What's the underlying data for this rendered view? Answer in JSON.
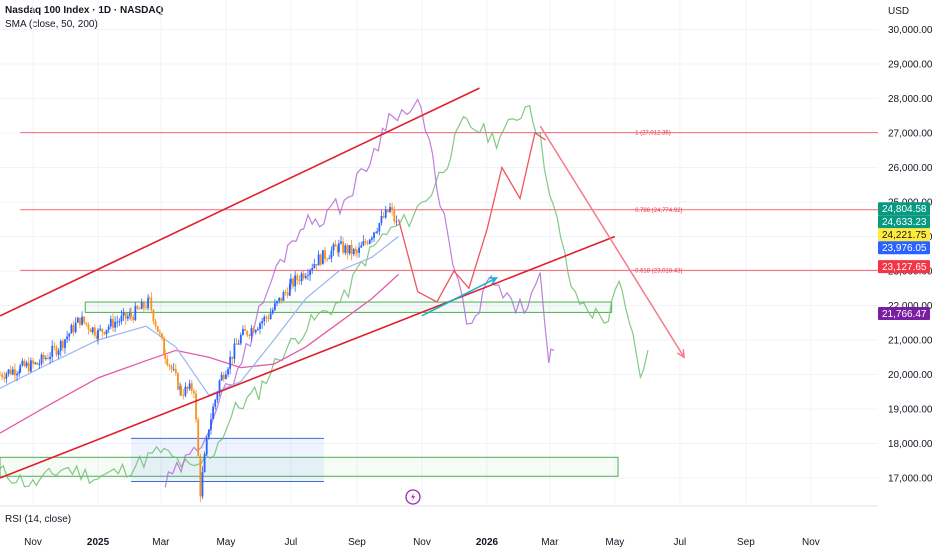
{
  "header": {
    "title": "Nasdaq 100 Index · 1D · NASDAQ",
    "indicator": "SMA (close, 50, 200)",
    "rsi": "RSI (14, close)",
    "currency": "USD"
  },
  "colors": {
    "up": "#2962ff",
    "down": "#f7931a",
    "sma50": "#9bb6ee",
    "sma200": "#e35ba5",
    "channel": "#e0202e",
    "fib": "#f23645",
    "zone": "#4caf50",
    "projection_purple": "#b36bd6",
    "projection_green": "#6fbf6f",
    "projection_red": "#f0545f",
    "arrow_cyan": "#12b5cf",
    "arrow_pink": "#f77a8a",
    "blue_box": "#3a6fd8"
  },
  "chart_data": {
    "type": "candlestick",
    "title": "Nasdaq 100 Index · 1D · NASDAQ",
    "indicators": [
      "SMA 50",
      "SMA 200",
      "RSI 14"
    ],
    "currency": "USD",
    "ylim": [
      16400,
      30600
    ],
    "y_ticks": [
      17000,
      18000,
      19000,
      20000,
      21000,
      22000,
      23000,
      24000,
      25000,
      26000,
      27000,
      28000,
      29000,
      30000
    ],
    "y_tick_labels": [
      "17,000.00",
      "18,000.00",
      "19,000.00",
      "20,000.00",
      "21,000.00",
      "22,000.00",
      "23,000.00",
      "24,000.00",
      "25,000.00",
      "26,000.00",
      "27,000.00",
      "28,000.00",
      "29,000.00",
      "30,000.00"
    ],
    "x_labels": [
      {
        "date": "2024-11",
        "text": "Nov",
        "bold": false
      },
      {
        "date": "2025-01",
        "text": "2025",
        "bold": true
      },
      {
        "date": "2025-03",
        "text": "Mar",
        "bold": false
      },
      {
        "date": "2025-05",
        "text": "May",
        "bold": false
      },
      {
        "date": "2025-07",
        "text": "Jul",
        "bold": false
      },
      {
        "date": "2025-09",
        "text": "Sep",
        "bold": false
      },
      {
        "date": "2025-11",
        "text": "Nov",
        "bold": false
      },
      {
        "date": "2026-01",
        "text": "2026",
        "bold": true
      },
      {
        "date": "2026-03",
        "text": "Mar",
        "bold": false
      },
      {
        "date": "2026-05",
        "text": "May",
        "bold": false
      },
      {
        "date": "2026-07",
        "text": "Jul",
        "bold": false
      },
      {
        "date": "2026-09",
        "text": "Sep",
        "bold": false
      },
      {
        "date": "2026-11",
        "text": "Nov",
        "bold": false
      }
    ],
    "price_path": [
      [
        "2024-10-01",
        20000
      ],
      [
        "2024-10-20",
        20200
      ],
      [
        "2024-11-05",
        20300
      ],
      [
        "2024-11-25",
        20800
      ],
      [
        "2024-12-15",
        21600
      ],
      [
        "2025-01-01",
        21200
      ],
      [
        "2025-01-15",
        21500
      ],
      [
        "2025-02-01",
        21700
      ],
      [
        "2025-02-18",
        22100
      ],
      [
        "2025-03-05",
        20600
      ],
      [
        "2025-03-20",
        19500
      ],
      [
        "2025-04-01",
        19600
      ],
      [
        "2025-04-07",
        16600
      ],
      [
        "2025-04-15",
        18500
      ],
      [
        "2025-04-25",
        19800
      ],
      [
        "2025-05-15",
        21100
      ],
      [
        "2025-06-10",
        21700
      ],
      [
        "2025-07-01",
        22600
      ],
      [
        "2025-07-25",
        23300
      ],
      [
        "2025-08-15",
        23700
      ],
      [
        "2025-09-01",
        23500
      ],
      [
        "2025-09-20",
        24300
      ],
      [
        "2025-10-02",
        24800
      ],
      [
        "2025-10-10",
        24200
      ]
    ],
    "sma50": [
      [
        "2024-10-01",
        19600
      ],
      [
        "2024-11-15",
        20300
      ],
      [
        "2025-01-01",
        21000
      ],
      [
        "2025-02-15",
        21400
      ],
      [
        "2025-03-15",
        20800
      ],
      [
        "2025-04-15",
        19400
      ],
      [
        "2025-05-15",
        19800
      ],
      [
        "2025-06-15",
        21000
      ],
      [
        "2025-07-15",
        22200
      ],
      [
        "2025-08-15",
        23000
      ],
      [
        "2025-09-15",
        23400
      ],
      [
        "2025-10-10",
        24000
      ]
    ],
    "sma200": [
      [
        "2024-10-01",
        18300
      ],
      [
        "2024-11-15",
        19100
      ],
      [
        "2025-01-01",
        19900
      ],
      [
        "2025-02-15",
        20400
      ],
      [
        "2025-03-15",
        20700
      ],
      [
        "2025-04-15",
        20500
      ],
      [
        "2025-05-15",
        20200
      ],
      [
        "2025-06-15",
        20300
      ],
      [
        "2025-07-15",
        20800
      ],
      [
        "2025-08-15",
        21500
      ],
      [
        "2025-09-15",
        22200
      ],
      [
        "2025-10-10",
        22900
      ]
    ],
    "channel_upper": [
      [
        "2024-10-01",
        21700
      ],
      [
        "2025-12-25",
        28300
      ]
    ],
    "channel_lower": [
      [
        "2024-10-01",
        17000
      ],
      [
        "2026-05-01",
        24000
      ]
    ],
    "fib_levels": [
      {
        "ratio": "1",
        "value": 27012.35,
        "label": "1 (27,012.35)"
      },
      {
        "ratio": "0.786",
        "value": 24774.92,
        "label": "0.786 (24,774.92)"
      },
      {
        "ratio": "0.618",
        "value": 23018.43,
        "label": "0.618 (23,018.43)"
      }
    ],
    "zones": [
      {
        "name": "resistance zone",
        "from": "2024-12-20",
        "to": "2026-04-28",
        "high": 22100,
        "low": 21800
      },
      {
        "name": "lower support zone",
        "from": "2024-10-01",
        "to": "2026-05-04",
        "high": 17600,
        "low": 17050
      },
      {
        "name": "april low box",
        "from": "2025-02-01",
        "to": "2025-08-01",
        "high": 18150,
        "low": 16900
      }
    ],
    "projection_purple": [
      [
        "2025-03-05",
        16800
      ],
      [
        "2025-04-01",
        17700
      ],
      [
        "2025-05-01",
        19500
      ],
      [
        "2025-05-20",
        20700
      ],
      [
        "2025-06-10",
        22500
      ],
      [
        "2025-06-25",
        23500
      ],
      [
        "2025-07-10",
        24300
      ],
      [
        "2025-08-01",
        24600
      ],
      [
        "2025-08-20",
        25000
      ],
      [
        "2025-09-10",
        26000
      ],
      [
        "2025-09-25",
        27000
      ],
      [
        "2025-10-05",
        27700
      ],
      [
        "2025-10-18",
        27500
      ],
      [
        "2025-10-28",
        27900
      ],
      [
        "2025-11-08",
        26700
      ],
      [
        "2025-11-22",
        24500
      ],
      [
        "2025-12-05",
        22500
      ],
      [
        "2025-12-18",
        21300
      ],
      [
        "2026-01-05",
        22800
      ],
      [
        "2026-01-20",
        22100
      ],
      [
        "2026-02-05",
        21900
      ],
      [
        "2026-02-20",
        22700
      ],
      [
        "2026-02-28",
        20300
      ],
      [
        "2026-03-05",
        20700
      ]
    ],
    "projection_green": [
      [
        "2024-10-01",
        17200
      ],
      [
        "2024-11-01",
        16800
      ],
      [
        "2024-12-01",
        17300
      ],
      [
        "2025-01-01",
        17000
      ],
      [
        "2025-02-01",
        17300
      ],
      [
        "2025-03-01",
        17800
      ],
      [
        "2025-04-01",
        17200
      ],
      [
        "2025-04-20",
        17800
      ],
      [
        "2025-05-10",
        19000
      ],
      [
        "2025-06-01",
        19500
      ],
      [
        "2025-06-20",
        20500
      ],
      [
        "2025-07-20",
        21500
      ],
      [
        "2025-08-20",
        22200
      ],
      [
        "2025-09-05",
        23200
      ],
      [
        "2025-09-25",
        24000
      ],
      [
        "2025-10-20",
        24500
      ],
      [
        "2025-11-10",
        25300
      ],
      [
        "2025-11-25",
        26200
      ],
      [
        "2025-12-10",
        27300
      ],
      [
        "2025-12-25",
        27100
      ],
      [
        "2026-01-10",
        26800
      ],
      [
        "2026-01-25",
        27300
      ],
      [
        "2026-02-10",
        27900
      ],
      [
        "2026-02-20",
        26800
      ],
      [
        "2026-03-01",
        25400
      ],
      [
        "2026-03-15",
        23400
      ],
      [
        "2026-03-25",
        22200
      ],
      [
        "2026-04-10",
        21800
      ],
      [
        "2026-04-25",
        21600
      ],
      [
        "2026-05-05",
        22600
      ],
      [
        "2026-05-15",
        21600
      ],
      [
        "2026-05-25",
        20000
      ],
      [
        "2026-06-01",
        20700
      ]
    ],
    "projection_red": [
      [
        "2025-10-10",
        24500
      ],
      [
        "2025-10-28",
        22400
      ],
      [
        "2025-11-15",
        22100
      ],
      [
        "2025-12-01",
        23000
      ],
      [
        "2025-12-15",
        22500
      ],
      [
        "2026-01-01",
        24200
      ],
      [
        "2026-01-15",
        26000
      ],
      [
        "2026-02-01",
        25100
      ],
      [
        "2026-02-15",
        27000
      ],
      [
        "2026-02-25",
        26800
      ]
    ],
    "arrows": [
      {
        "color": "cyan",
        "from": [
          "2025-11-01",
          21700
        ],
        "to": [
          "2026-01-10",
          22800
        ]
      },
      {
        "color": "pink",
        "from": [
          "2026-02-20",
          27200
        ],
        "to": [
          "2026-07-05",
          20500
        ]
      }
    ],
    "price_tags": [
      {
        "value": 24804.58,
        "label": "24,804.58",
        "bg": "#089981",
        "fg": "#ffffff"
      },
      {
        "value": 24633.23,
        "label": "24,633.23",
        "bg": "#089981",
        "fg": "#ffffff"
      },
      {
        "value": 24221.75,
        "label": "24,221.75",
        "bg": "#ffeb3b",
        "fg": "#131722"
      },
      {
        "value": 23976.05,
        "label": "23,976.05",
        "bg": "#2962ff",
        "fg": "#ffffff"
      },
      {
        "value": 23127.65,
        "label": "23,127.65",
        "bg": "#f23645",
        "fg": "#ffffff"
      },
      {
        "value": 21766.47,
        "label": "21,766.47",
        "bg": "#7b1fa2",
        "fg": "#ffffff"
      }
    ]
  }
}
